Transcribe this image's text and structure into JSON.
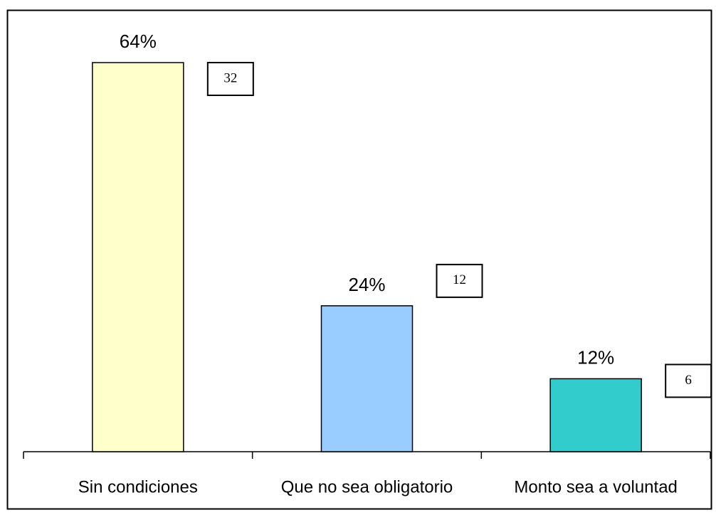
{
  "chart_data": {
    "type": "bar",
    "categories": [
      "Sin condiciones",
      "Que no sea obligatorio",
      "Monto sea a voluntad"
    ],
    "values": [
      64,
      24,
      12
    ],
    "value_labels": [
      "64%",
      "24%",
      "12%"
    ],
    "counts": [
      32,
      12,
      6
    ],
    "colors": [
      "#ffffcc",
      "#99ccff",
      "#33cccc"
    ]
  }
}
